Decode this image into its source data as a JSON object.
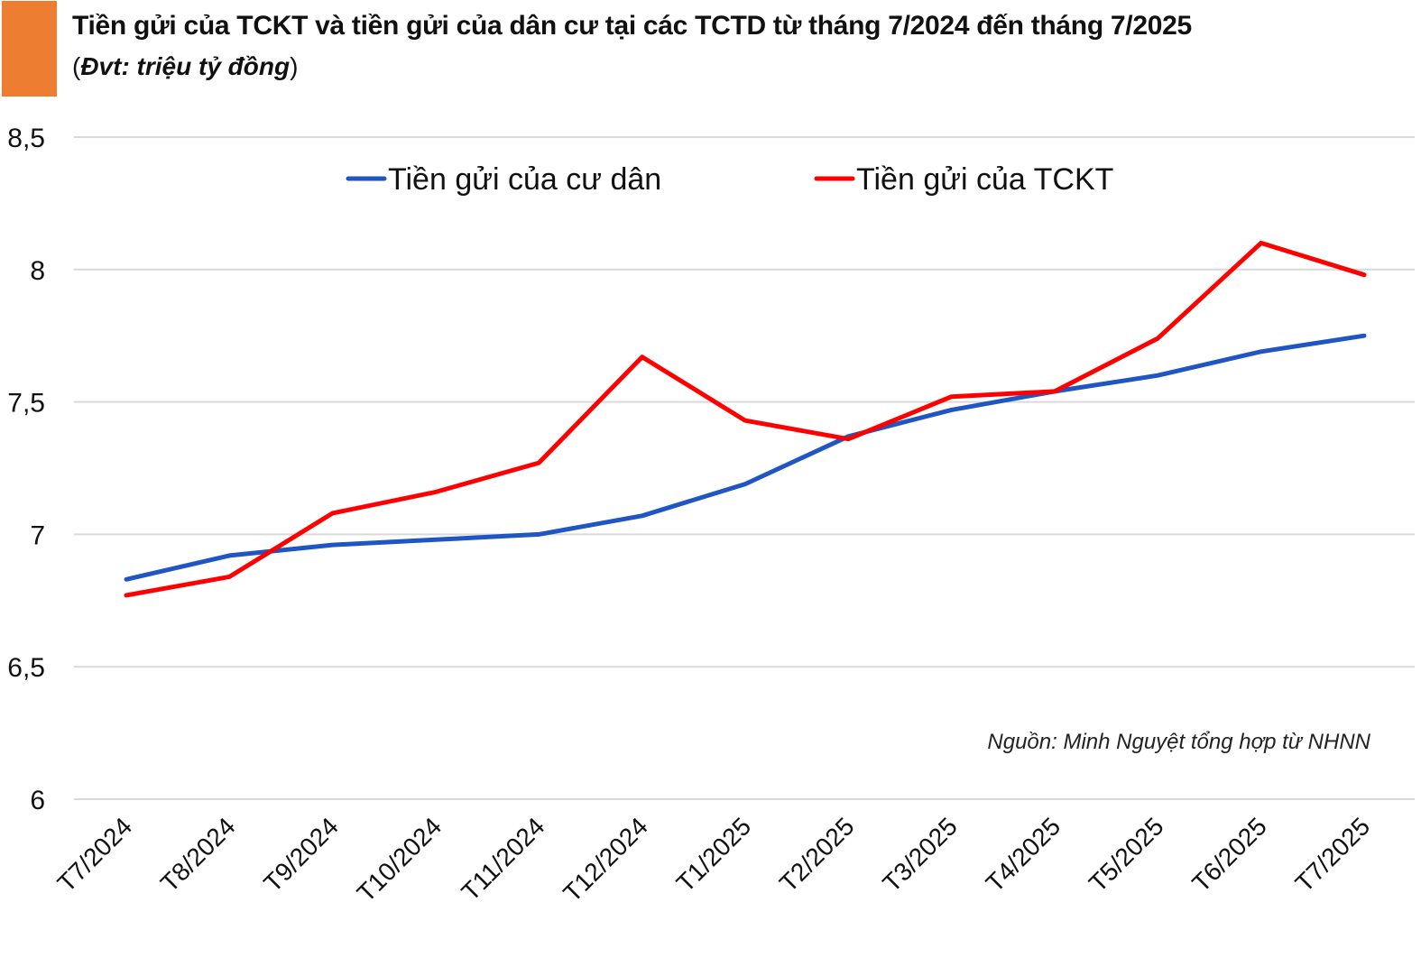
{
  "header": {
    "accent_color": "#ED7D31",
    "title": "Tiền gửi của TCKT và tiền gửi của dân cư tại các TCTD từ tháng 7/2024 đến tháng 7/2025",
    "subtitle_open": "(",
    "subtitle_unit": "Đvt: triệu tỷ đồng",
    "subtitle_close": ")"
  },
  "source_note": "Nguồn: Minh Nguyệt tổng hợp từ NHNN",
  "chart_data": {
    "type": "line",
    "title": "Tiền gửi của TCKT và tiền gửi của dân cư tại các TCTD từ tháng 7/2024 đến tháng 7/2025",
    "subtitle": "(Đvt: triệu tỷ đồng)",
    "xlabel": "",
    "ylabel": "triệu tỷ đồng",
    "ylim": [
      6,
      8.5
    ],
    "yticks": [
      6,
      6.5,
      7,
      7.5,
      8,
      8.5
    ],
    "ytick_labels": [
      "6",
      "6,5",
      "7",
      "7,5",
      "8",
      "8,5"
    ],
    "grid": true,
    "legend_position": "top",
    "categories": [
      "T7/2024",
      "T8/2024",
      "T9/2024",
      "T10/2024",
      "T11/2024",
      "T12/2024",
      "T1/2025",
      "T2/2025",
      "T3/2025",
      "T4/2025",
      "T5/2025",
      "T6/2025",
      "T7/2025"
    ],
    "series": [
      {
        "name": "Tiền gửi của cư dân",
        "color": "#1F56C3",
        "values": [
          6.83,
          6.92,
          6.96,
          6.98,
          7.0,
          7.07,
          7.19,
          7.37,
          7.47,
          7.54,
          7.6,
          7.69,
          7.75
        ]
      },
      {
        "name": "Tiền gửi của TCKT",
        "color": "#FF0000",
        "values": [
          6.77,
          6.84,
          7.08,
          7.16,
          7.27,
          7.67,
          7.43,
          7.36,
          7.52,
          7.54,
          7.74,
          8.1,
          7.98
        ]
      }
    ],
    "annotations": [
      "Nguồn: Minh Nguyệt tổng hợp từ NHNN"
    ]
  }
}
